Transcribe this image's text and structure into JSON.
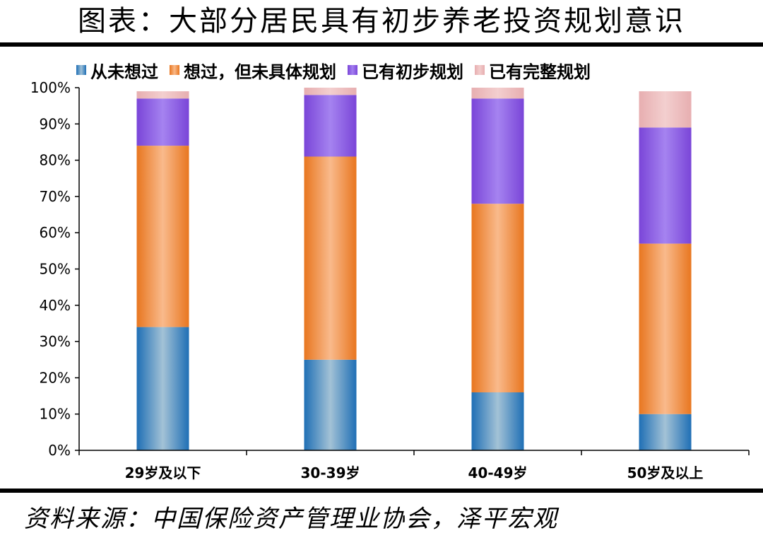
{
  "title": "图表：大部分居民具有初步养老投资规划意识",
  "source": "资料来源：中国保险资产管理业协会，泽平宏观",
  "legend": [
    "从未想过",
    "想过，但未具体规划",
    "已有初步规划",
    "已有完整规划"
  ],
  "colors": {
    "never": "#4f8fc9",
    "thought": "#f59a4a",
    "initial": "#8b5ce0",
    "complete": "#eebcbc"
  },
  "chart_data": {
    "type": "bar",
    "stacked": true,
    "categories": [
      "29岁及以下",
      "30-39岁",
      "40-49岁",
      "50岁及以上"
    ],
    "series": [
      {
        "name": "从未想过",
        "values": [
          34,
          25,
          16,
          10
        ]
      },
      {
        "name": "想过，但未具体规划",
        "values": [
          50,
          56,
          52,
          47
        ]
      },
      {
        "name": "已有初步规划",
        "values": [
          13,
          17,
          29,
          32
        ]
      },
      {
        "name": "已有完整规划",
        "values": [
          2,
          2,
          3,
          10
        ]
      }
    ],
    "yticks": [
      "0%",
      "10%",
      "20%",
      "30%",
      "40%",
      "50%",
      "60%",
      "70%",
      "80%",
      "90%",
      "100%"
    ],
    "ylim": [
      0,
      100
    ],
    "grid": false,
    "legend_position": "top"
  }
}
